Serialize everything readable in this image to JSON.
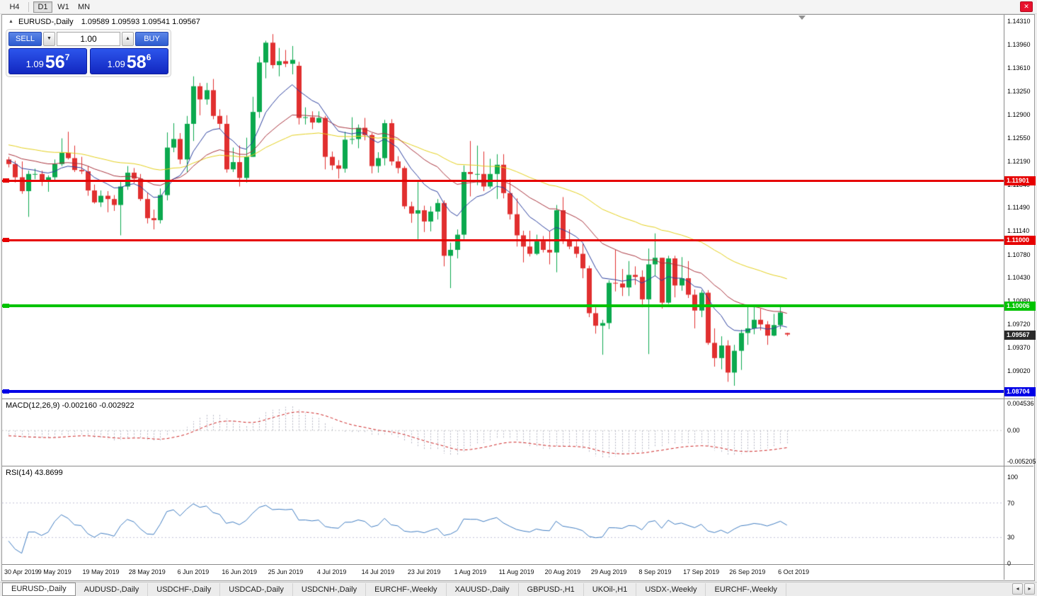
{
  "toolbar": {
    "timeframes": [
      "H4",
      "D1",
      "W1",
      "MN"
    ],
    "active_timeframe": "D1",
    "close_icon": "✕"
  },
  "chart_header": {
    "marker_icon": "▲",
    "symbol_title": "EURUSD-,Daily",
    "ohlc": "1.09589 1.09593 1.09541 1.09567"
  },
  "trade_panel": {
    "sell_label": "SELL",
    "buy_label": "BUY",
    "volume": "1.00",
    "volume_down_icon": "▼",
    "volume_up_icon": "▲",
    "bid": {
      "big": "1.09",
      "pips": "56",
      "pipette": "7"
    },
    "ask": {
      "big": "1.09",
      "pips": "58",
      "pipette": "6"
    }
  },
  "macd_panel": {
    "title": "MACD(12,26,9) -0.002160 -0.002922",
    "axis": [
      "0.004536",
      "0.00",
      "-0.005205"
    ]
  },
  "rsi_panel": {
    "title": "RSI(14) 43.8699",
    "axis": [
      "100",
      "70",
      "30",
      "0"
    ],
    "levels": [
      70,
      30
    ]
  },
  "tab_bar": {
    "active_index": 0,
    "tabs": [
      "EURUSD-,Daily",
      "AUDUSD-,Daily",
      "USDCHF-,Daily",
      "USDCAD-,Daily",
      "USDCNH-,Daily",
      "EURCHF-,Weekly",
      "XAUUSD-,Daily",
      "GBPUSD-,H1",
      "UKOil-,H1",
      "USDX-,Weekly",
      "EURCHF-,Weekly"
    ],
    "scroll_left_icon": "◂",
    "scroll_right_icon": "▸"
  },
  "chart_data": {
    "type": "candlestick",
    "symbol": "EURUSD",
    "timeframe": "Daily",
    "y_axis_labels": [
      "1.14310",
      "1.13960",
      "1.13610",
      "1.13250",
      "1.12900",
      "1.12550",
      "1.12190",
      "1.11840",
      "1.11490",
      "1.11140",
      "1.10780",
      "1.10430",
      "1.10080",
      "1.09720",
      "1.09370",
      "1.09020"
    ],
    "x_labels": [
      "30 Apr 2019",
      "9 May 2019",
      "19 May 2019",
      "28 May 2019",
      "6 Jun 2019",
      "16 Jun 2019",
      "25 Jun 2019",
      "4 Jul 2019",
      "14 Jul 2019",
      "23 Jul 2019",
      "1 Aug 2019",
      "11 Aug 2019",
      "20 Aug 2019",
      "29 Aug 2019",
      "8 Sep 2019",
      "17 Sep 2019",
      "26 Sep 2019",
      "6 Oct 2019"
    ],
    "hlines": [
      {
        "price": 1.11901,
        "label": "1.11901",
        "color": "#e60000",
        "thickness": 3
      },
      {
        "price": 1.11,
        "label": "1.11000",
        "color": "#e60000",
        "thickness": 3
      },
      {
        "price": 1.10006,
        "label": "1.10006",
        "color": "#00c300",
        "thickness": 4
      },
      {
        "price": 1.08704,
        "label": "1.08704",
        "color": "#0000e6",
        "thickness": 4
      }
    ],
    "current_bid": {
      "price": 1.09567,
      "label": "1.09567",
      "color": "#2a2a2a"
    },
    "current_candle_ohlc": [
      1.09589,
      1.09593,
      1.09541,
      1.09567
    ],
    "indicators": [
      {
        "name": "MACD",
        "params": [
          12,
          26,
          9
        ],
        "current_values": [
          -0.00216,
          -0.002922
        ]
      },
      {
        "name": "RSI",
        "params": [
          14
        ],
        "current_value": 43.8699
      }
    ],
    "colors": {
      "up": "#0ba94e",
      "down": "#e12f2f",
      "ma_fast": "#2b3f9e",
      "ma_mid": "#a8323c",
      "ma_slow": "#e3cf1c",
      "macd_hist": "#b4b6c4",
      "macd_signal": "#cc2222",
      "rsi": "#3f7cc1"
    },
    "ma_periods": {
      "fast": 10,
      "mid": 24,
      "slow": 52
    },
    "candles_ohlc": [
      [
        1.1222,
        1.1226,
        1.121,
        1.1215
      ],
      [
        1.1215,
        1.122,
        1.1187,
        1.1195
      ],
      [
        1.1195,
        1.1219,
        1.117,
        1.1174
      ],
      [
        1.1174,
        1.1205,
        1.1135,
        1.12
      ],
      [
        1.12,
        1.1208,
        1.1192,
        1.12
      ],
      [
        1.12,
        1.1205,
        1.1182,
        1.119
      ],
      [
        1.119,
        1.1198,
        1.1173,
        1.1195
      ],
      [
        1.1195,
        1.1222,
        1.119,
        1.1215
      ],
      [
        1.1215,
        1.1254,
        1.1212,
        1.1232
      ],
      [
        1.1232,
        1.1264,
        1.1222,
        1.1224
      ],
      [
        1.1224,
        1.1243,
        1.1203,
        1.1206
      ],
      [
        1.1206,
        1.1226,
        1.12,
        1.1204
      ],
      [
        1.1204,
        1.1212,
        1.1167,
        1.1175
      ],
      [
        1.1175,
        1.1184,
        1.1155,
        1.1157
      ],
      [
        1.1157,
        1.1175,
        1.115,
        1.1167
      ],
      [
        1.1167,
        1.1174,
        1.1142,
        1.1162
      ],
      [
        1.1162,
        1.1168,
        1.1144,
        1.1153
      ],
      [
        1.1153,
        1.1188,
        1.1107,
        1.1181
      ],
      [
        1.1181,
        1.1212,
        1.1176,
        1.1202
      ],
      [
        1.1202,
        1.1209,
        1.1186,
        1.1193
      ],
      [
        1.1193,
        1.12,
        1.1159,
        1.1162
      ],
      [
        1.1162,
        1.1172,
        1.1125,
        1.1133
      ],
      [
        1.1133,
        1.1146,
        1.1116,
        1.113
      ],
      [
        1.113,
        1.1178,
        1.1125,
        1.1168
      ],
      [
        1.1168,
        1.1263,
        1.116,
        1.124
      ],
      [
        1.124,
        1.1277,
        1.1233,
        1.1253
      ],
      [
        1.1253,
        1.1262,
        1.1215,
        1.1222
      ],
      [
        1.1222,
        1.1288,
        1.1202,
        1.1276
      ],
      [
        1.1276,
        1.1348,
        1.125,
        1.1333
      ],
      [
        1.1333,
        1.1338,
        1.1289,
        1.1313
      ],
      [
        1.1313,
        1.1338,
        1.1305,
        1.1327
      ],
      [
        1.1327,
        1.1344,
        1.1283,
        1.1288
      ],
      [
        1.1288,
        1.1298,
        1.1268,
        1.1276
      ],
      [
        1.1276,
        1.1289,
        1.1202,
        1.1207
      ],
      [
        1.1207,
        1.124,
        1.1203,
        1.1218
      ],
      [
        1.1218,
        1.1243,
        1.1181,
        1.1194
      ],
      [
        1.1194,
        1.1255,
        1.1187,
        1.1226
      ],
      [
        1.1226,
        1.1317,
        1.1226,
        1.1294
      ],
      [
        1.1294,
        1.1378,
        1.1285,
        1.1369
      ],
      [
        1.1369,
        1.1402,
        1.1345,
        1.1399
      ],
      [
        1.1399,
        1.1412,
        1.136,
        1.1365
      ],
      [
        1.1365,
        1.1391,
        1.1348,
        1.1371
      ],
      [
        1.1371,
        1.1388,
        1.1362,
        1.1367
      ],
      [
        1.1367,
        1.1394,
        1.1351,
        1.1373
      ],
      [
        1.1364,
        1.137,
        1.1275,
        1.1285
      ],
      [
        1.1285,
        1.1301,
        1.1275,
        1.1286
      ],
      [
        1.1286,
        1.1295,
        1.1268,
        1.1278
      ],
      [
        1.1278,
        1.1295,
        1.1277,
        1.1285
      ],
      [
        1.1285,
        1.1288,
        1.1207,
        1.1226
      ],
      [
        1.1226,
        1.1234,
        1.1206,
        1.1213
      ],
      [
        1.1213,
        1.1221,
        1.1193,
        1.1208
      ],
      [
        1.1208,
        1.1264,
        1.1202,
        1.1252
      ],
      [
        1.1252,
        1.1286,
        1.1245,
        1.1253
      ],
      [
        1.1253,
        1.1275,
        1.1239,
        1.127
      ],
      [
        1.127,
        1.1285,
        1.1251,
        1.1259
      ],
      [
        1.1259,
        1.1262,
        1.1201,
        1.1212
      ],
      [
        1.1212,
        1.1233,
        1.1202,
        1.1224
      ],
      [
        1.1224,
        1.1282,
        1.1213,
        1.1277
      ],
      [
        1.1277,
        1.1283,
        1.1213,
        1.1219
      ],
      [
        1.1219,
        1.1227,
        1.1201,
        1.1209
      ],
      [
        1.1209,
        1.1212,
        1.1147,
        1.1151
      ],
      [
        1.1151,
        1.1158,
        1.1126,
        1.114
      ],
      [
        1.114,
        1.1188,
        1.1101,
        1.1145
      ],
      [
        1.1145,
        1.1152,
        1.1112,
        1.1128
      ],
      [
        1.1128,
        1.1151,
        1.1113,
        1.1143
      ],
      [
        1.1143,
        1.1162,
        1.1131,
        1.1156
      ],
      [
        1.1156,
        1.116,
        1.106,
        1.1076
      ],
      [
        1.1076,
        1.1096,
        1.1027,
        1.1085
      ],
      [
        1.1085,
        1.1116,
        1.1072,
        1.1108
      ],
      [
        1.1108,
        1.1213,
        1.1101,
        1.1203
      ],
      [
        1.1203,
        1.125,
        1.1166,
        1.12
      ],
      [
        1.12,
        1.1243,
        1.1183,
        1.12
      ],
      [
        1.12,
        1.1234,
        1.1174,
        1.1181
      ],
      [
        1.1181,
        1.1223,
        1.1178,
        1.12
      ],
      [
        1.12,
        1.123,
        1.1162,
        1.1214
      ],
      [
        1.1214,
        1.123,
        1.1163,
        1.1171
      ],
      [
        1.1171,
        1.1192,
        1.1131,
        1.1139
      ],
      [
        1.1139,
        1.1163,
        1.109,
        1.1107
      ],
      [
        1.1107,
        1.1114,
        1.1066,
        1.109
      ],
      [
        1.109,
        1.1114,
        1.1075,
        1.1079
      ],
      [
        1.1079,
        1.1108,
        1.1077,
        1.1098
      ],
      [
        1.1098,
        1.1106,
        1.1081,
        1.1085
      ],
      [
        1.1085,
        1.1113,
        1.1063,
        1.1081
      ],
      [
        1.1081,
        1.1153,
        1.1051,
        1.1145
      ],
      [
        1.1145,
        1.1165,
        1.1094,
        1.1101
      ],
      [
        1.1101,
        1.1116,
        1.1086,
        1.109
      ],
      [
        1.109,
        1.1098,
        1.1073,
        1.1079
      ],
      [
        1.1079,
        1.1094,
        1.1042,
        1.1057
      ],
      [
        1.1057,
        1.1061,
        1.0983,
        1.0989
      ],
      [
        1.0989,
        1.0998,
        1.0958,
        1.097
      ],
      [
        1.097,
        1.0979,
        1.0926,
        1.0974
      ],
      [
        1.0974,
        1.1039,
        1.0965,
        1.1035
      ],
      [
        1.1035,
        1.1085,
        1.1022,
        1.1034
      ],
      [
        1.1034,
        1.1056,
        1.1015,
        1.1028
      ],
      [
        1.1028,
        1.1068,
        1.1015,
        1.1047
      ],
      [
        1.1047,
        1.106,
        1.1032,
        1.1044
      ],
      [
        1.1044,
        1.1054,
        1.0998,
        1.101
      ],
      [
        1.101,
        1.1087,
        1.0927,
        1.1063
      ],
      [
        1.1063,
        1.111,
        1.1045,
        1.1073
      ],
      [
        1.1073,
        1.1073,
        1.0996,
        1.1005
      ],
      [
        1.1005,
        1.1076,
        1.1003,
        1.1072
      ],
      [
        1.1072,
        1.1076,
        1.1013,
        1.1031
      ],
      [
        1.1031,
        1.1074,
        1.1023,
        1.1042
      ],
      [
        1.1042,
        1.1068,
        1.1012,
        1.1017
      ],
      [
        1.1017,
        1.1025,
        1.0966,
        1.0993
      ],
      [
        1.0993,
        1.1024,
        1.0983,
        1.102
      ],
      [
        1.102,
        1.1024,
        1.0941,
        1.0944
      ],
      [
        1.0944,
        1.0966,
        1.0908,
        1.0921
      ],
      [
        1.0921,
        1.0954,
        1.0904,
        1.094
      ],
      [
        1.094,
        1.0948,
        1.0885,
        1.0899
      ],
      [
        1.0899,
        1.0941,
        1.0879,
        1.0932
      ],
      [
        1.0932,
        1.0964,
        1.0903,
        1.0959
      ],
      [
        1.0959,
        1.0999,
        1.0941,
        1.0966
      ],
      [
        1.0966,
        1.0999,
        1.0957,
        1.0979
      ],
      [
        1.0979,
        1.0996,
        1.0963,
        1.0972
      ],
      [
        1.0972,
        1.0977,
        1.0941,
        1.0955
      ],
      [
        1.0955,
        1.0988,
        1.0954,
        1.0971
      ],
      [
        1.0971,
        1.0999,
        1.0965,
        1.099
      ],
      [
        1.09589,
        1.09593,
        1.09541,
        1.09567
      ]
    ]
  }
}
